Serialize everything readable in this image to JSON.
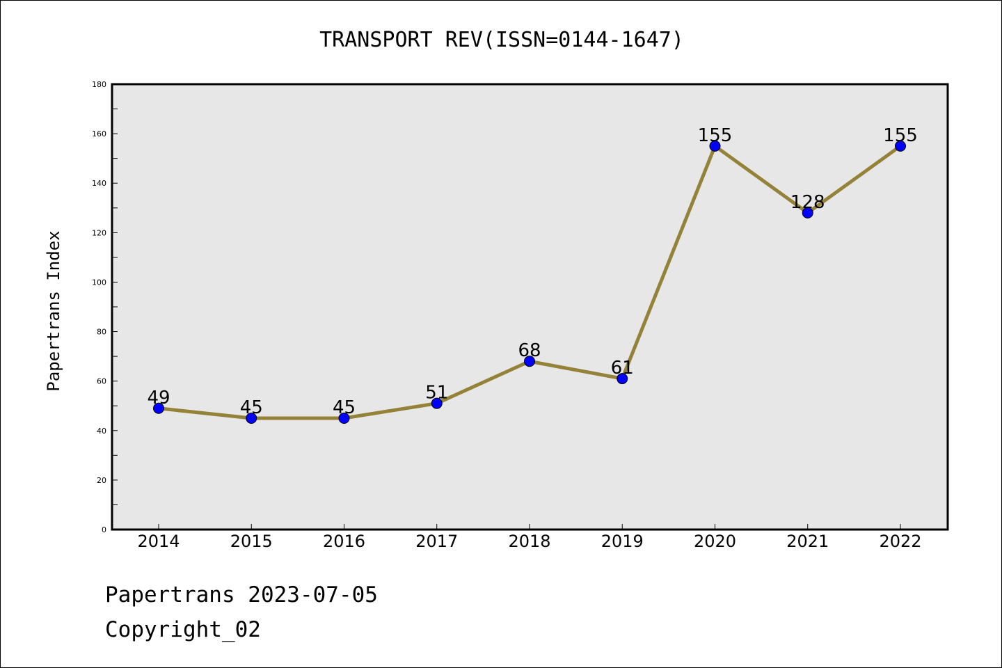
{
  "chart_data": {
    "type": "line",
    "title": "TRANSPORT REV(ISSN=0144-1647)",
    "xlabel": "",
    "ylabel": "Papertrans Index",
    "categories": [
      "2014",
      "2015",
      "2016",
      "2017",
      "2018",
      "2019",
      "2020",
      "2021",
      "2022"
    ],
    "series": [
      {
        "values": [
          49,
          45,
          45,
          51,
          68,
          61,
          155,
          128,
          155
        ],
        "line_color": "#948238",
        "marker_color": "#0000ff"
      }
    ],
    "ylim": [
      0,
      180
    ],
    "yticks": [
      "0",
      "20",
      "40",
      "60",
      "80",
      "100",
      "120",
      "140",
      "160",
      "180"
    ],
    "data_labels": [
      "49",
      "45",
      "45",
      "51",
      "68",
      "61",
      "155",
      "128",
      "155"
    ],
    "grid": false,
    "plot_background": "#e7e7e7"
  },
  "footer": {
    "line1": "Papertrans 2023-07-05",
    "line2": "Copyright_02"
  }
}
